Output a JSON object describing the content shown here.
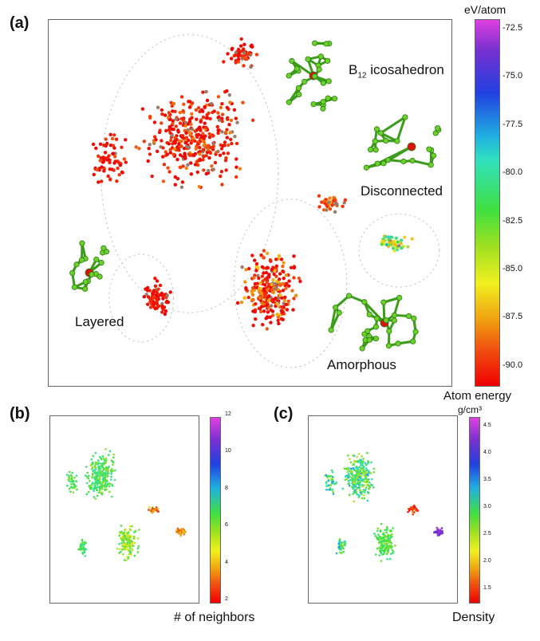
{
  "panels": {
    "a": {
      "label": "(a)",
      "colorbar": {
        "unit": "eV/atom",
        "title": "Atom energy",
        "ticks": [
          "-72.5",
          "-75.0",
          "-77.5",
          "-80.0",
          "-82.5",
          "-85.0",
          "-87.5",
          "-90.0"
        ],
        "range": [
          -91.0,
          -72.0
        ]
      },
      "cluster_labels": {
        "icosahedron_prefix": "B",
        "icosahedron_sub": "12",
        "icosahedron_suffix": " icosahedron",
        "disconnected": "Disconnected",
        "layered": "Layered",
        "amorphous": "Amorphous"
      }
    },
    "b": {
      "label": "(b)",
      "colorbar": {
        "title": "# of neighbors",
        "ticks": [
          "12",
          "10",
          "8",
          "6",
          "4",
          "2"
        ],
        "range": [
          2,
          12
        ]
      }
    },
    "c": {
      "label": "(c)",
      "colorbar": {
        "unit": "g/cm³",
        "title": "Density",
        "ticks": [
          "4.5",
          "4.0",
          "3.5",
          "3.0",
          "2.5",
          "2.0",
          "1.5"
        ],
        "range": [
          1.3,
          4.7
        ]
      }
    }
  },
  "chart_data": [
    {
      "type": "scatter",
      "panel": "a",
      "color_variable": "Atom energy (eV/atom)",
      "colorscale": "rainbow",
      "regions": [
        {
          "name": "Layered",
          "x_range": [
            0.12,
            0.3
          ],
          "y_range": [
            0.4,
            0.98
          ],
          "value_range": [
            -91,
            -89
          ]
        },
        {
          "name": "B12 icosahedron",
          "x_range": [
            0.3,
            0.58
          ],
          "y_range": [
            0.05,
            0.3
          ],
          "value_range": [
            -91,
            -88
          ]
        },
        {
          "name": "Amorphous",
          "x_range": [
            0.35,
            0.62
          ],
          "y_range": [
            0.5,
            0.98
          ],
          "value_range": [
            -91,
            -86
          ]
        },
        {
          "name": "Disconnected",
          "x_range": [
            0.7,
            0.9
          ],
          "y_range": [
            0.5,
            0.68
          ],
          "value_range": [
            -88,
            -76
          ]
        }
      ]
    },
    {
      "type": "scatter",
      "panel": "b",
      "color_variable": "# of neighbors",
      "colorscale": "rainbow",
      "value_range": [
        2,
        12
      ]
    },
    {
      "type": "scatter",
      "panel": "c",
      "color_variable": "Density (g/cm³)",
      "colorscale": "rainbow",
      "value_range": [
        1.3,
        4.7
      ]
    }
  ]
}
